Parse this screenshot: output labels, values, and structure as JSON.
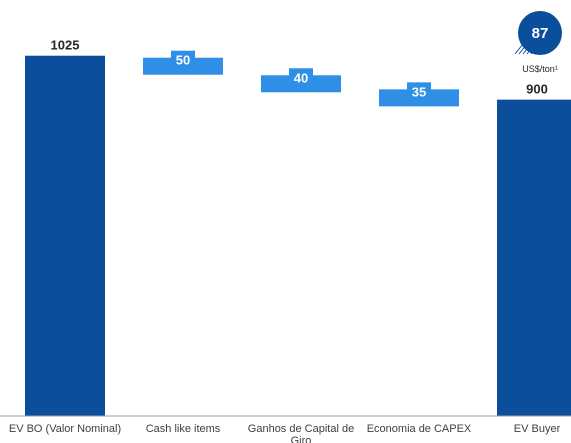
{
  "chart_data": {
    "type": "bar",
    "variant": "waterfall",
    "categories": [
      "EV BO (Valor Nominal)",
      "Cash like items",
      "Ganhos de Capital de Giro",
      "Economia de CAPEX",
      "EV Buyer"
    ],
    "series": [
      {
        "values": [
          1025,
          -50,
          -40,
          -35,
          900
        ],
        "labels": [
          "1025",
          "50",
          "40",
          "35",
          "900"
        ],
        "kinds": [
          "total",
          "delta",
          "delta",
          "delta",
          "total"
        ]
      }
    ],
    "ylim": [
      0,
      1100
    ],
    "grid": false,
    "legend": "none",
    "title": "",
    "xlabel": "",
    "ylabel": ""
  },
  "badge": {
    "value": "87",
    "unit": "US$/ton¹"
  },
  "colors": {
    "total": "#0b4f9c",
    "delta": "#2f8fe6",
    "baseline": "#9aa0a6",
    "badge": "#0b4f9c"
  }
}
